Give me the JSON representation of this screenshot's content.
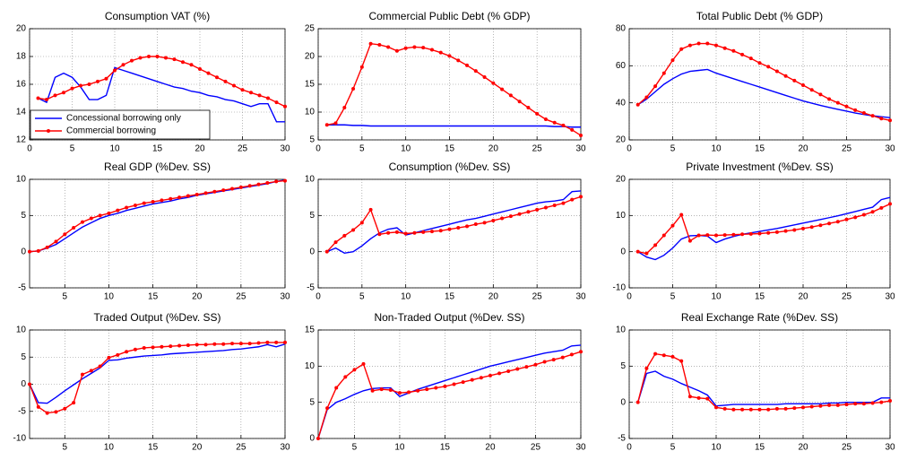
{
  "chart_data": [
    {
      "type": "line",
      "title": "Consumption VAT (%)",
      "xlim": [
        0,
        30
      ],
      "xticks": [
        0,
        5,
        10,
        15,
        20,
        25,
        30
      ],
      "ylim": [
        12,
        20
      ],
      "yticks": [
        12,
        14,
        16,
        18,
        20
      ],
      "grid": true,
      "legend": "lower left",
      "x": [
        1,
        2,
        3,
        4,
        5,
        6,
        7,
        8,
        9,
        10,
        11,
        12,
        13,
        14,
        15,
        16,
        17,
        18,
        19,
        20,
        21,
        22,
        23,
        24,
        25,
        26,
        27,
        28,
        29,
        30
      ],
      "series": [
        {
          "name": "Concessional borrowing only",
          "color": "#0000ff",
          "values": [
            15,
            14.7,
            16.5,
            16.8,
            16.5,
            15.8,
            14.9,
            14.9,
            15.2,
            17.2,
            17.0,
            16.8,
            16.6,
            16.4,
            16.2,
            16.0,
            15.8,
            15.7,
            15.5,
            15.4,
            15.2,
            15.1,
            14.9,
            14.8,
            14.6,
            14.4,
            14.6,
            14.6,
            13.3,
            13.3
          ]
        },
        {
          "name": "Commercial borrowing",
          "color": "#ff0000",
          "values": [
            15,
            14.9,
            15.2,
            15.4,
            15.7,
            15.9,
            16.0,
            16.2,
            16.4,
            17.0,
            17.4,
            17.7,
            17.9,
            18.0,
            18.0,
            17.9,
            17.8,
            17.6,
            17.4,
            17.1,
            16.8,
            16.5,
            16.2,
            15.9,
            15.6,
            15.4,
            15.2,
            15.0,
            14.7,
            14.4
          ]
        }
      ]
    },
    {
      "type": "line",
      "title": "Commercial Public Debt (% GDP)",
      "xlim": [
        0,
        30
      ],
      "xticks": [
        0,
        5,
        10,
        15,
        20,
        25,
        30
      ],
      "ylim": [
        5,
        25
      ],
      "yticks": [
        5,
        10,
        15,
        20,
        25
      ],
      "grid": true,
      "x": [
        1,
        2,
        3,
        4,
        5,
        6,
        7,
        8,
        9,
        10,
        11,
        12,
        13,
        14,
        15,
        16,
        17,
        18,
        19,
        20,
        21,
        22,
        23,
        24,
        25,
        26,
        27,
        28,
        29,
        30
      ],
      "series": [
        {
          "color": "#0000ff",
          "values": [
            7.7,
            7.7,
            7.7,
            7.6,
            7.6,
            7.5,
            7.5,
            7.5,
            7.5,
            7.5,
            7.5,
            7.5,
            7.5,
            7.5,
            7.5,
            7.5,
            7.5,
            7.5,
            7.5,
            7.5,
            7.5,
            7.5,
            7.5,
            7.5,
            7.5,
            7.5,
            7.4,
            7.4,
            7.3,
            7.3
          ]
        },
        {
          "color": "#ff0000",
          "values": [
            7.7,
            8,
            10.8,
            14.2,
            18.1,
            22.3,
            22.1,
            21.7,
            21.0,
            21.5,
            21.7,
            21.6,
            21.2,
            20.7,
            20.1,
            19.3,
            18.4,
            17.4,
            16.3,
            15.2,
            14.1,
            13.0,
            11.9,
            10.8,
            9.7,
            8.7,
            8.1,
            7.6,
            6.8,
            5.8
          ]
        }
      ]
    },
    {
      "type": "line",
      "title": "Total Public Debt (% GDP)",
      "xlim": [
        0,
        30
      ],
      "xticks": [
        0,
        5,
        10,
        15,
        20,
        25,
        30
      ],
      "ylim": [
        20,
        80
      ],
      "yticks": [
        20,
        40,
        60,
        80
      ],
      "grid": true,
      "x": [
        1,
        2,
        3,
        4,
        5,
        6,
        7,
        8,
        9,
        10,
        11,
        12,
        13,
        14,
        15,
        16,
        17,
        18,
        19,
        20,
        21,
        22,
        23,
        24,
        25,
        26,
        27,
        28,
        29,
        30
      ],
      "series": [
        {
          "color": "#0000ff",
          "values": [
            39,
            42,
            46,
            50,
            53,
            55.5,
            57,
            57.5,
            58,
            56,
            54.5,
            53,
            51.5,
            50,
            48.5,
            47,
            45.5,
            44,
            42.5,
            41,
            39.8,
            38.6,
            37.5,
            36.5,
            35.5,
            34.5,
            33.7,
            33,
            32.5,
            32
          ]
        },
        {
          "color": "#ff0000",
          "values": [
            39,
            43,
            49,
            56,
            63,
            69,
            71,
            72,
            72,
            71,
            69.5,
            68,
            66,
            64,
            61.5,
            59.5,
            57,
            54.5,
            52,
            49.5,
            47,
            44.5,
            42,
            40,
            38,
            36,
            34.5,
            33,
            31.5,
            30.5
          ]
        }
      ]
    },
    {
      "type": "line",
      "title": "Real GDP (%Dev. SS)",
      "xlim": [
        1,
        30
      ],
      "xticks": [
        5,
        10,
        15,
        20,
        25,
        30
      ],
      "ylim": [
        -5,
        10
      ],
      "yticks": [
        -5,
        0,
        5,
        10
      ],
      "grid": true,
      "x": [
        1,
        2,
        3,
        4,
        5,
        6,
        7,
        8,
        9,
        10,
        11,
        12,
        13,
        14,
        15,
        16,
        17,
        18,
        19,
        20,
        21,
        22,
        23,
        24,
        25,
        26,
        27,
        28,
        29,
        30
      ],
      "series": [
        {
          "color": "#0000ff",
          "values": [
            0,
            0.1,
            0.5,
            1,
            1.8,
            2.6,
            3.4,
            4,
            4.6,
            5,
            5.3,
            5.7,
            6,
            6.3,
            6.6,
            6.8,
            7,
            7.3,
            7.5,
            7.8,
            8,
            8.2,
            8.4,
            8.6,
            8.8,
            9,
            9.2,
            9.4,
            9.7,
            9.9
          ]
        },
        {
          "color": "#ff0000",
          "values": [
            0,
            0.1,
            0.6,
            1.4,
            2.4,
            3.3,
            4.1,
            4.6,
            5,
            5.3,
            5.7,
            6.1,
            6.4,
            6.7,
            6.9,
            7.1,
            7.3,
            7.5,
            7.7,
            7.9,
            8.1,
            8.3,
            8.5,
            8.7,
            8.9,
            9.1,
            9.3,
            9.5,
            9.7,
            9.8
          ]
        }
      ]
    },
    {
      "type": "line",
      "title": "Consumption (%Dev. SS)",
      "xlim": [
        0,
        30
      ],
      "xticks": [
        0,
        5,
        10,
        15,
        20,
        25,
        30
      ],
      "ylim": [
        -5,
        10
      ],
      "yticks": [
        -5,
        0,
        5,
        10
      ],
      "grid": true,
      "x": [
        1,
        2,
        3,
        4,
        5,
        6,
        7,
        8,
        9,
        10,
        11,
        12,
        13,
        14,
        15,
        16,
        17,
        18,
        19,
        20,
        21,
        22,
        23,
        24,
        25,
        26,
        27,
        28,
        29,
        30
      ],
      "series": [
        {
          "color": "#0000ff",
          "values": [
            0,
            0.5,
            -0.2,
            0,
            0.8,
            1.8,
            2.6,
            3.1,
            3.3,
            2.3,
            2.6,
            2.9,
            3.2,
            3.5,
            3.8,
            4.1,
            4.4,
            4.6,
            4.9,
            5.2,
            5.5,
            5.8,
            6.1,
            6.4,
            6.7,
            6.9,
            7,
            7.2,
            8.3,
            8.4
          ]
        },
        {
          "color": "#ff0000",
          "values": [
            0,
            1.3,
            2.2,
            3,
            4,
            5.8,
            2.4,
            2.6,
            2.7,
            2.5,
            2.6,
            2.7,
            2.8,
            2.9,
            3.1,
            3.3,
            3.5,
            3.8,
            4,
            4.3,
            4.6,
            4.9,
            5.2,
            5.5,
            5.8,
            6.1,
            6.4,
            6.7,
            7.2,
            7.6
          ]
        }
      ]
    },
    {
      "type": "line",
      "title": "Private Investment (%Dev. SS)",
      "xlim": [
        0,
        30
      ],
      "xticks": [
        0,
        5,
        10,
        15,
        20,
        25,
        30
      ],
      "ylim": [
        -10,
        20
      ],
      "yticks": [
        -10,
        0,
        10,
        20
      ],
      "grid": true,
      "x": [
        1,
        2,
        3,
        4,
        5,
        6,
        7,
        8,
        9,
        10,
        11,
        12,
        13,
        14,
        15,
        16,
        17,
        18,
        19,
        20,
        21,
        22,
        23,
        24,
        25,
        26,
        27,
        28,
        29,
        30
      ],
      "series": [
        {
          "color": "#0000ff",
          "values": [
            0,
            -1.5,
            -2.2,
            -1,
            1,
            3.5,
            4.4,
            4.5,
            4.3,
            2.5,
            3.5,
            4.2,
            4.8,
            5.2,
            5.6,
            6,
            6.4,
            6.9,
            7.4,
            7.9,
            8.4,
            8.9,
            9.4,
            9.9,
            10.5,
            11.1,
            11.7,
            12.3,
            14.4,
            15
          ]
        },
        {
          "color": "#ff0000",
          "values": [
            0,
            -0.5,
            1.8,
            4.5,
            7.2,
            10.2,
            3,
            4.5,
            4.6,
            4.5,
            4.6,
            4.7,
            4.8,
            4.9,
            5,
            5.2,
            5.4,
            5.7,
            6,
            6.4,
            6.8,
            7.3,
            7.8,
            8.3,
            8.9,
            9.5,
            10.2,
            11,
            12.1,
            13.2
          ]
        }
      ]
    },
    {
      "type": "line",
      "title": "Traded Output (%Dev. SS)",
      "xlim": [
        1,
        30
      ],
      "xticks": [
        5,
        10,
        15,
        20,
        25,
        30
      ],
      "ylim": [
        -10,
        10
      ],
      "yticks": [
        -10,
        -5,
        0,
        5,
        10
      ],
      "grid": true,
      "x": [
        1,
        2,
        3,
        4,
        5,
        6,
        7,
        8,
        9,
        10,
        11,
        12,
        13,
        14,
        15,
        16,
        17,
        18,
        19,
        20,
        21,
        22,
        23,
        24,
        25,
        26,
        27,
        28,
        29,
        30
      ],
      "series": [
        {
          "color": "#0000ff",
          "values": [
            0,
            -3.4,
            -3.5,
            -2.4,
            -1.2,
            -0.1,
            1,
            2,
            3,
            4.4,
            4.5,
            4.8,
            5,
            5.2,
            5.3,
            5.4,
            5.6,
            5.7,
            5.8,
            5.9,
            6,
            6.1,
            6.2,
            6.4,
            6.5,
            6.7,
            6.9,
            7.3,
            6.9,
            7.4
          ]
        },
        {
          "color": "#ff0000",
          "values": [
            0,
            -4.2,
            -5.3,
            -5.1,
            -4.5,
            -3.4,
            1.8,
            2.5,
            3.3,
            4.9,
            5.4,
            6,
            6.4,
            6.7,
            6.8,
            6.9,
            7,
            7.1,
            7.2,
            7.3,
            7.3,
            7.4,
            7.4,
            7.5,
            7.5,
            7.5,
            7.6,
            7.7,
            7.7,
            7.7
          ]
        }
      ]
    },
    {
      "type": "line",
      "title": "Non-Traded Output (%Dev. SS)",
      "xlim": [
        1,
        30
      ],
      "xticks": [
        5,
        10,
        15,
        20,
        25,
        30
      ],
      "ylim": [
        0,
        15
      ],
      "yticks": [
        0,
        5,
        10,
        15
      ],
      "grid": true,
      "x": [
        1,
        2,
        3,
        4,
        5,
        6,
        7,
        8,
        9,
        10,
        11,
        12,
        13,
        14,
        15,
        16,
        17,
        18,
        19,
        20,
        21,
        22,
        23,
        24,
        25,
        26,
        27,
        28,
        29,
        30
      ],
      "series": [
        {
          "color": "#0000ff",
          "values": [
            0,
            4,
            5,
            5.5,
            6.1,
            6.6,
            6.9,
            7,
            7,
            5.8,
            6.3,
            6.8,
            7.2,
            7.6,
            8,
            8.4,
            8.8,
            9.2,
            9.6,
            10,
            10.3,
            10.6,
            10.9,
            11.2,
            11.5,
            11.8,
            12,
            12.2,
            12.8,
            12.9
          ]
        },
        {
          "color": "#ff0000",
          "values": [
            0,
            4.2,
            7,
            8.5,
            9.5,
            10.3,
            6.6,
            6.8,
            6.7,
            6.3,
            6.4,
            6.6,
            6.8,
            7,
            7.2,
            7.5,
            7.8,
            8.1,
            8.4,
            8.7,
            9,
            9.3,
            9.6,
            9.9,
            10.2,
            10.6,
            10.9,
            11.2,
            11.6,
            12
          ]
        }
      ]
    },
    {
      "type": "line",
      "title": "Real Exchange Rate (%Dev. SS)",
      "xlim": [
        0,
        30
      ],
      "xticks": [
        0,
        5,
        10,
        15,
        20,
        25,
        30
      ],
      "ylim": [
        -5,
        10
      ],
      "yticks": [
        -5,
        0,
        5,
        10
      ],
      "grid": true,
      "x": [
        1,
        2,
        3,
        4,
        5,
        6,
        7,
        8,
        9,
        10,
        11,
        12,
        13,
        14,
        15,
        16,
        17,
        18,
        19,
        20,
        21,
        22,
        23,
        24,
        25,
        26,
        27,
        28,
        29,
        30
      ],
      "series": [
        {
          "color": "#0000ff",
          "values": [
            0,
            4,
            4.3,
            3.6,
            3.2,
            2.6,
            2.1,
            1.6,
            1,
            -0.5,
            -0.4,
            -0.3,
            -0.3,
            -0.3,
            -0.3,
            -0.3,
            -0.3,
            -0.2,
            -0.2,
            -0.2,
            -0.2,
            -0.2,
            -0.1,
            -0.1,
            0,
            0,
            0,
            0,
            0.6,
            0.6
          ]
        },
        {
          "color": "#ff0000",
          "values": [
            0,
            4.7,
            6.7,
            6.5,
            6.3,
            5.7,
            0.8,
            0.6,
            0.5,
            -0.7,
            -0.9,
            -1,
            -1,
            -1,
            -1,
            -1,
            -0.9,
            -0.9,
            -0.8,
            -0.7,
            -0.6,
            -0.5,
            -0.4,
            -0.4,
            -0.3,
            -0.2,
            -0.2,
            -0.1,
            0,
            0.2
          ]
        }
      ]
    }
  ]
}
